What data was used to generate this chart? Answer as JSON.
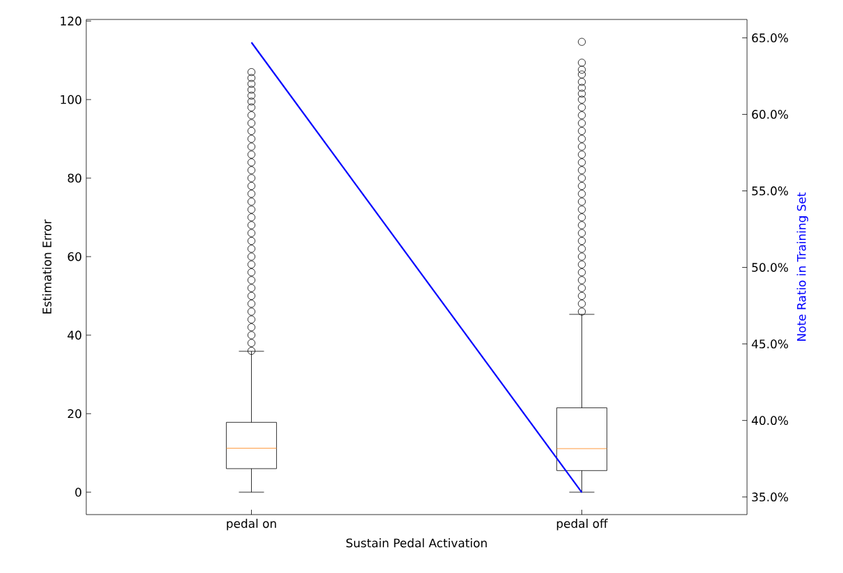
{
  "chart_data": {
    "type": "box",
    "xlabel": "Sustain Pedal Activation",
    "ylabel": "Estimation Error",
    "y2label": "Note Ratio in Training Set",
    "categories": [
      "pedal on",
      "pedal off"
    ],
    "boxes": [
      {
        "low": 0,
        "q1": 6.0,
        "median": 11.2,
        "q3": 17.8,
        "high": 35.9,
        "outliers": [
          36,
          38,
          40,
          42,
          44,
          46,
          48,
          50,
          52,
          54,
          56,
          58,
          60,
          62,
          64,
          66,
          68,
          70,
          72,
          74,
          76,
          78,
          80,
          82,
          84,
          86,
          88,
          90,
          92,
          94,
          96,
          98,
          99.5,
          101,
          102.5,
          104,
          105.5,
          107
        ]
      },
      {
        "low": 0,
        "q1": 5.5,
        "median": 11.1,
        "q3": 21.5,
        "high": 45.3,
        "outliers": [
          46,
          48,
          50,
          52,
          54,
          56,
          58,
          60,
          62,
          64,
          66,
          68,
          70,
          72,
          74,
          76,
          78,
          80,
          82,
          84,
          86,
          88,
          90,
          92,
          94,
          96,
          98,
          100,
          101.5,
          103,
          104.5,
          106.4,
          107.6,
          109.4,
          114.7
        ]
      }
    ],
    "series": [
      {
        "type": "line",
        "axis": "y2",
        "color": "#0000ff",
        "values": [
          64.7,
          35.3
        ]
      }
    ],
    "ylim": [
      -5.7,
      120.4
    ],
    "yticks": [
      0,
      20,
      40,
      60,
      80,
      100,
      120
    ],
    "y2lim": [
      33.85,
      66.2
    ],
    "y2ticks": [
      {
        "value": 35,
        "label": "35.0%"
      },
      {
        "value": 40,
        "label": "40.0%"
      },
      {
        "value": 45,
        "label": "45.0%"
      },
      {
        "value": 50,
        "label": "50.0%"
      },
      {
        "value": 55,
        "label": "55.0%"
      },
      {
        "value": 60,
        "label": "60.0%"
      },
      {
        "value": 65,
        "label": "65.0%"
      }
    ]
  }
}
